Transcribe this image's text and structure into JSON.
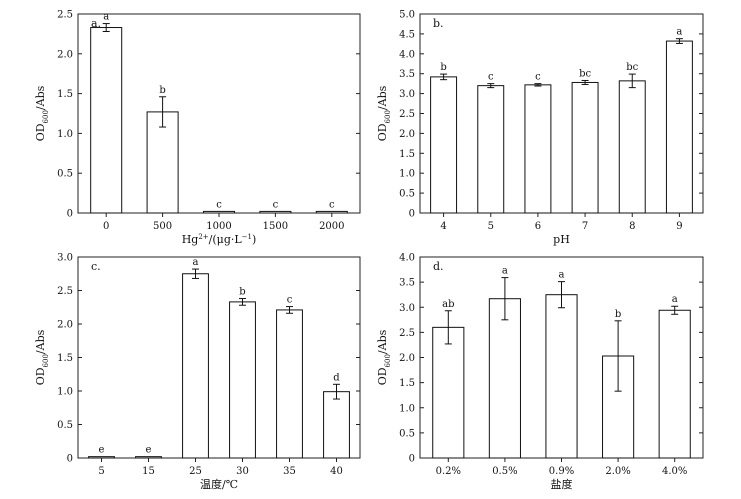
{
  "chart_data": [
    {
      "type": "bar",
      "panel_label": "a.",
      "categories": [
        "0",
        "500",
        "1000",
        "1500",
        "2000"
      ],
      "values": [
        2.33,
        1.27,
        0.02,
        0.02,
        0.02
      ],
      "errors": [
        0.05,
        0.19,
        0.0,
        0.0,
        0.0
      ],
      "sig_letters": [
        "a",
        "b",
        "c",
        "c",
        "c"
      ],
      "xlabel_parts": [
        "Hg",
        "2+",
        "/(μg·L",
        "−1",
        ")"
      ],
      "ylabel_parts": [
        "OD",
        "600",
        "/Abs"
      ],
      "ylim": [
        0,
        2.5
      ],
      "yticks": [
        "0",
        "0.5",
        "1.0",
        "1.5",
        "2.0",
        "2.5"
      ]
    },
    {
      "type": "bar",
      "panel_label": "b.",
      "categories": [
        "4",
        "5",
        "6",
        "7",
        "8",
        "9"
      ],
      "values": [
        3.42,
        3.2,
        3.22,
        3.28,
        3.32,
        4.32
      ],
      "errors": [
        0.07,
        0.05,
        0.03,
        0.05,
        0.17,
        0.06
      ],
      "sig_letters": [
        "b",
        "c",
        "c",
        "bc",
        "bc",
        "a"
      ],
      "xlabel_parts": [
        "pH"
      ],
      "ylabel_parts": [
        "OD",
        "600",
        "/Abs"
      ],
      "ylim": [
        0,
        5.0
      ],
      "yticks": [
        "0",
        "0.5",
        "1.0",
        "1.5",
        "2.0",
        "2.5",
        "3.0",
        "3.5",
        "4.0",
        "4.5",
        "5.0"
      ]
    },
    {
      "type": "bar",
      "panel_label": "c.",
      "categories": [
        "5",
        "15",
        "25",
        "30",
        "35",
        "40"
      ],
      "values": [
        0.02,
        0.02,
        2.75,
        2.33,
        2.21,
        0.99
      ],
      "errors": [
        0.0,
        0.0,
        0.07,
        0.05,
        0.05,
        0.11
      ],
      "sig_letters": [
        "e",
        "e",
        "a",
        "b",
        "c",
        "d"
      ],
      "xlabel_parts": [
        "温度/℃"
      ],
      "ylabel_parts": [
        "OD",
        "600",
        "/Abs"
      ],
      "ylim": [
        0,
        3.0
      ],
      "yticks": [
        "0",
        "0.5",
        "1.0",
        "1.5",
        "2.0",
        "2.5",
        "3.0"
      ]
    },
    {
      "type": "bar",
      "panel_label": "d.",
      "categories": [
        "0.2%",
        "0.5%",
        "0.9%",
        "2.0%",
        "4.0%"
      ],
      "values": [
        2.6,
        3.17,
        3.25,
        2.03,
        2.94
      ],
      "errors": [
        0.33,
        0.42,
        0.26,
        0.7,
        0.08
      ],
      "sig_letters": [
        "ab",
        "a",
        "a",
        "b",
        "a"
      ],
      "xlabel_parts": [
        "盐度"
      ],
      "ylabel_parts": [
        "OD",
        "600",
        "/Abs"
      ],
      "ylim": [
        0,
        4.0
      ],
      "yticks": [
        "0",
        "0.5",
        "1.0",
        "1.5",
        "2.0",
        "2.5",
        "3.0",
        "3.5",
        "4.0"
      ]
    }
  ]
}
